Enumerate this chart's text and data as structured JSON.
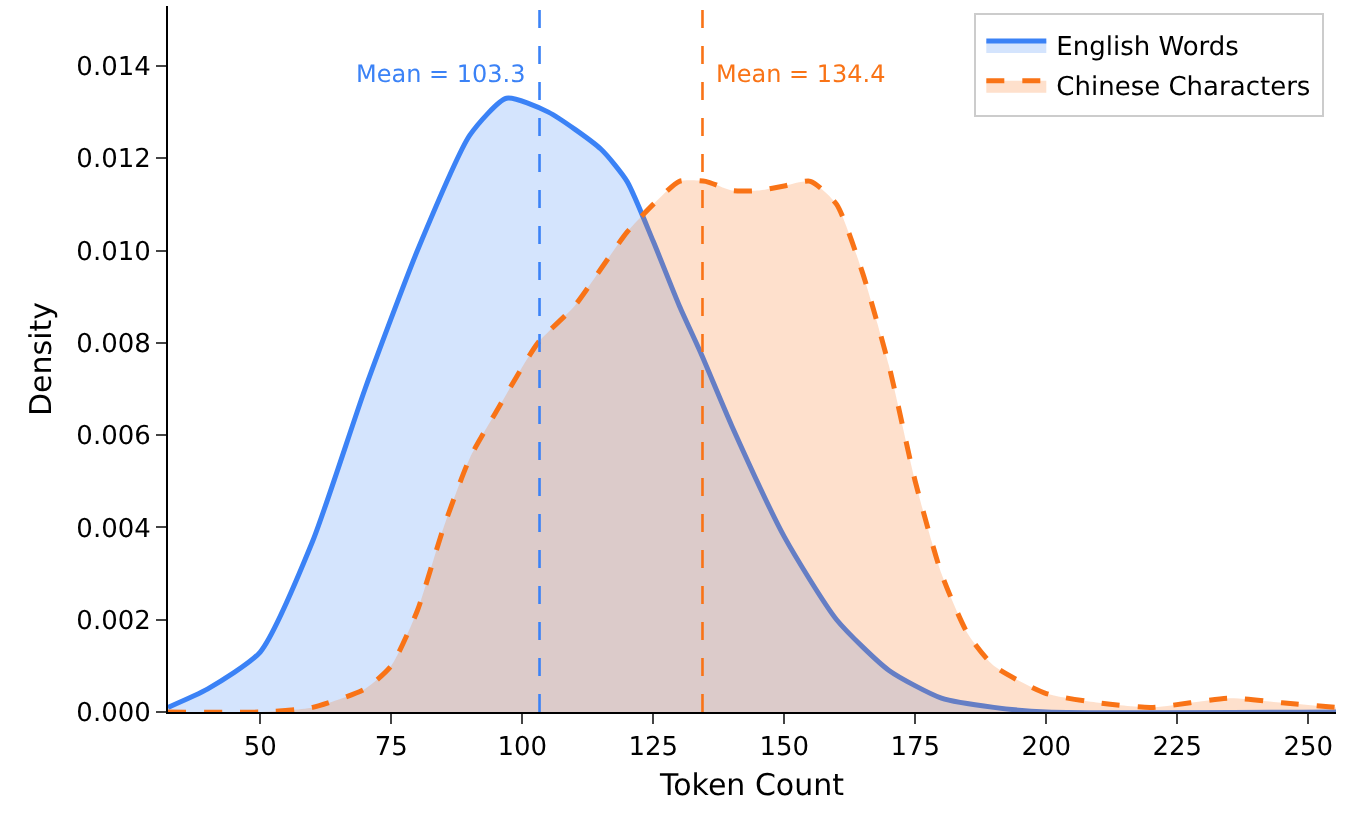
{
  "chart_data": {
    "type": "area",
    "xlabel": "Token Count",
    "ylabel": "Density",
    "xlim": [
      32.4,
      255.3
    ],
    "ylim": [
      0,
      0.0153
    ],
    "xticks": [
      50,
      75,
      100,
      125,
      150,
      175,
      200,
      225,
      250
    ],
    "yticks": [
      {
        "value": 0,
        "label": "0.000"
      },
      {
        "value": 0.002,
        "label": "0.002"
      },
      {
        "value": 0.004,
        "label": "0.004"
      },
      {
        "value": 0.006,
        "label": "0.006"
      },
      {
        "value": 0.008,
        "label": "0.008"
      },
      {
        "value": 0.01,
        "label": "0.010"
      },
      {
        "value": 0.012,
        "label": "0.012"
      },
      {
        "value": 0.014,
        "label": "0.014"
      }
    ],
    "grid": false,
    "legend": "top right",
    "marker": "none",
    "series": [
      {
        "name": "English Words",
        "color": "#3b82f6",
        "line_style": "solid",
        "x": [
          32.4,
          40,
          50,
          60,
          70,
          80,
          90,
          97,
          105,
          115,
          120,
          125,
          130,
          134,
          140,
          150,
          160,
          170,
          180,
          190,
          200,
          255.3
        ],
        "values": [
          0.0001,
          0.0005,
          0.0013,
          0.0037,
          0.007,
          0.01,
          0.0125,
          0.0133,
          0.013,
          0.0122,
          0.0115,
          0.0102,
          0.0088,
          0.0078,
          0.0062,
          0.0038,
          0.002,
          0.0009,
          0.0003,
          0.0001,
          0,
          0
        ]
      },
      {
        "name": "Chinese Characters",
        "color": "#f97316",
        "line_style": "dashed",
        "x": [
          32.4,
          50,
          60,
          70,
          75,
          80,
          85,
          90,
          95,
          103,
          110,
          115,
          120,
          125,
          130,
          135,
          140,
          145,
          150,
          155,
          160,
          165,
          170,
          175,
          180,
          185,
          190,
          200,
          210,
          220,
          235,
          245,
          255.3
        ],
        "values": [
          0,
          0,
          0.0001,
          0.0005,
          0.001,
          0.0022,
          0.004,
          0.0055,
          0.0065,
          0.008,
          0.0088,
          0.0096,
          0.0104,
          0.011,
          0.0115,
          0.0115,
          0.0113,
          0.0113,
          0.0114,
          0.0115,
          0.011,
          0.0095,
          0.0075,
          0.005,
          0.003,
          0.0017,
          0.001,
          0.0004,
          0.0002,
          0.0001,
          0.0003,
          0.0002,
          0.0001
        ]
      }
    ],
    "ref_lines": [
      {
        "axis": "x",
        "value": 103.3,
        "label": "Mean = 103.3",
        "color": "#3b82f6",
        "line_style": "dashed"
      },
      {
        "axis": "x",
        "value": 134.4,
        "label": "Mean = 134.4",
        "color": "#f97316",
        "line_style": "dashed"
      }
    ]
  }
}
